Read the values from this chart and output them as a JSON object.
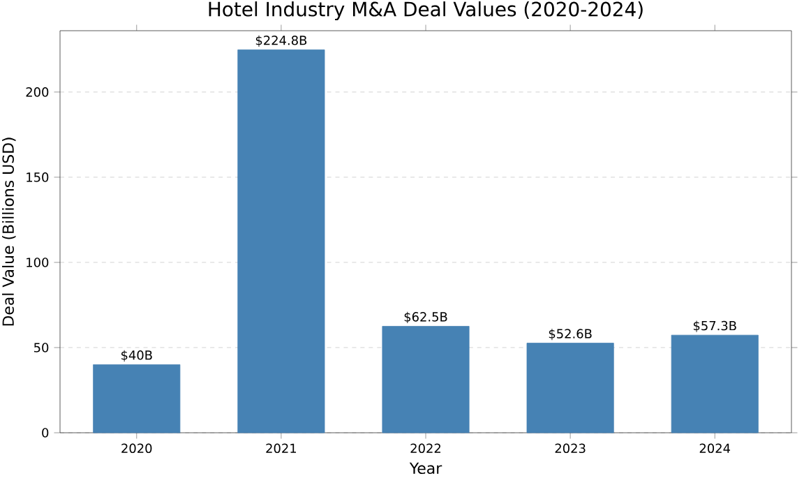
{
  "chart_data": {
    "type": "bar",
    "title": "Hotel Industry M&A Deal Values (2020-2024)",
    "xlabel": "Year",
    "ylabel": "Deal Value (Billions USD)",
    "categories": [
      "2020",
      "2021",
      "2022",
      "2023",
      "2024"
    ],
    "values": [
      40,
      224.8,
      62.5,
      52.6,
      57.3
    ],
    "value_labels": [
      "$40B",
      "$224.8B",
      "$62.5B",
      "$52.6B",
      "$57.3B"
    ],
    "color": "#4682b4",
    "ylim": [
      0,
      236
    ],
    "yticks": [
      0,
      50,
      100,
      150,
      200
    ],
    "grid": "y"
  }
}
